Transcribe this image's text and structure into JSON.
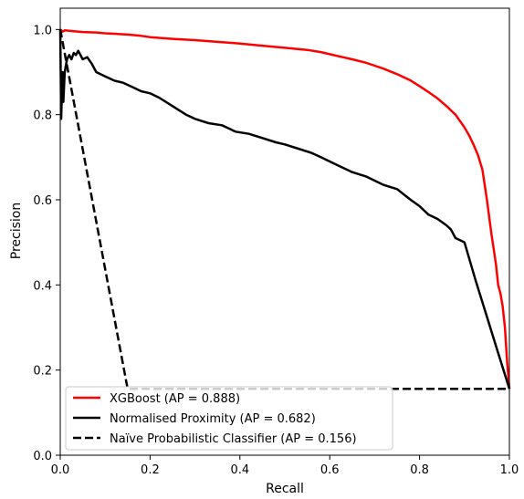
{
  "chart_data": {
    "type": "line",
    "title": "",
    "xlabel": "Recall",
    "ylabel": "Precision",
    "xlim": [
      0.0,
      1.0
    ],
    "ylim": [
      0.0,
      1.05
    ],
    "xticks": [
      "0.0",
      "0.2",
      "0.4",
      "0.6",
      "0.8",
      "1.0"
    ],
    "yticks": [
      "0.0",
      "0.2",
      "0.4",
      "0.6",
      "0.8",
      "1.0"
    ],
    "grid": false,
    "legend_position": "lower-left",
    "series": [
      {
        "name": "XGBoost (AP = 0.888)",
        "color": "#ff0000",
        "style": "solid",
        "x": [
          0.0,
          0.005,
          0.01,
          0.03,
          0.05,
          0.08,
          0.1,
          0.12,
          0.15,
          0.18,
          0.2,
          0.25,
          0.3,
          0.35,
          0.4,
          0.45,
          0.5,
          0.55,
          0.58,
          0.6,
          0.62,
          0.65,
          0.68,
          0.7,
          0.72,
          0.75,
          0.78,
          0.8,
          0.82,
          0.84,
          0.86,
          0.87,
          0.88,
          0.89,
          0.9,
          0.91,
          0.92,
          0.93,
          0.94,
          0.95,
          0.96,
          0.97,
          0.975,
          0.98,
          0.985,
          0.99,
          0.995,
          1.0
        ],
        "y": [
          1.0,
          0.995,
          0.998,
          0.996,
          0.994,
          0.993,
          0.991,
          0.99,
          0.988,
          0.985,
          0.982,
          0.978,
          0.975,
          0.971,
          0.967,
          0.962,
          0.957,
          0.952,
          0.947,
          0.942,
          0.937,
          0.93,
          0.922,
          0.915,
          0.908,
          0.895,
          0.88,
          0.867,
          0.853,
          0.838,
          0.82,
          0.81,
          0.8,
          0.785,
          0.77,
          0.752,
          0.73,
          0.705,
          0.67,
          0.6,
          0.52,
          0.45,
          0.4,
          0.38,
          0.35,
          0.3,
          0.22,
          0.156
        ]
      },
      {
        "name": "Normalised Proximity (AP = 0.682)",
        "color": "#000000",
        "style": "solid",
        "x": [
          0.0,
          0.002,
          0.005,
          0.007,
          0.01,
          0.015,
          0.02,
          0.025,
          0.03,
          0.035,
          0.04,
          0.05,
          0.06,
          0.07,
          0.08,
          0.1,
          0.12,
          0.14,
          0.16,
          0.18,
          0.2,
          0.22,
          0.25,
          0.28,
          0.3,
          0.33,
          0.36,
          0.39,
          0.42,
          0.45,
          0.48,
          0.5,
          0.53,
          0.56,
          0.58,
          0.6,
          0.62,
          0.65,
          0.68,
          0.7,
          0.72,
          0.75,
          0.78,
          0.8,
          0.82,
          0.84,
          0.86,
          0.87,
          0.88,
          0.89,
          0.9,
          0.925,
          0.95,
          0.975,
          1.0
        ],
        "y": [
          1.0,
          0.79,
          0.9,
          0.83,
          0.9,
          0.93,
          0.94,
          0.93,
          0.945,
          0.94,
          0.95,
          0.93,
          0.935,
          0.92,
          0.9,
          0.89,
          0.88,
          0.875,
          0.865,
          0.855,
          0.85,
          0.84,
          0.82,
          0.8,
          0.79,
          0.78,
          0.775,
          0.76,
          0.755,
          0.745,
          0.735,
          0.73,
          0.72,
          0.71,
          0.7,
          0.69,
          0.68,
          0.665,
          0.655,
          0.645,
          0.635,
          0.625,
          0.6,
          0.585,
          0.565,
          0.555,
          0.54,
          0.53,
          0.51,
          0.505,
          0.5,
          0.41,
          0.325,
          0.24,
          0.156
        ]
      },
      {
        "name": "Naïve Probabilistic Classifier (AP = 0.156)",
        "color": "#000000",
        "style": "dashed",
        "x": [
          0.0,
          0.15,
          1.0
        ],
        "y": [
          1.0,
          0.156,
          0.156
        ]
      }
    ]
  }
}
